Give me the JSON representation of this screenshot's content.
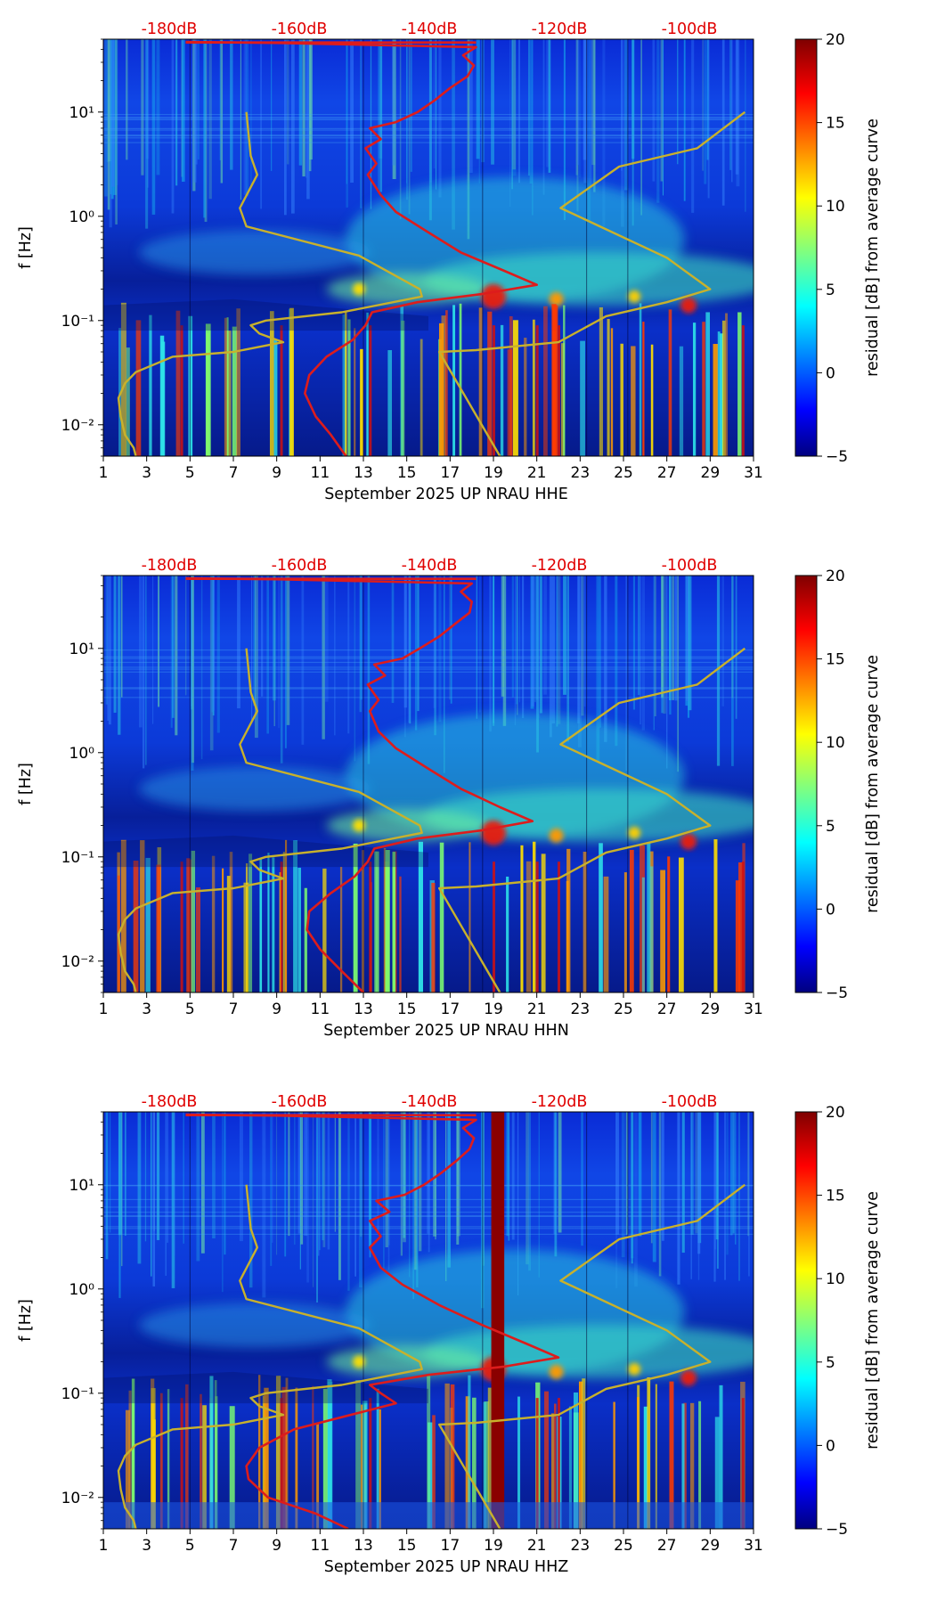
{
  "chart_data": [
    {
      "type": "heatmap",
      "xlabel": "September 2025 UP NRAU  HHE",
      "ylabel": "f [Hz]",
      "x_ticks": [
        "1",
        "3",
        "5",
        "7",
        "9",
        "11",
        "13",
        "15",
        "17",
        "19",
        "21",
        "23",
        "25",
        "27",
        "29",
        "31"
      ],
      "xlim": [
        1,
        31
      ],
      "ylim": [
        0.005,
        50
      ],
      "y_scale": "log",
      "y_ticks": [
        "10⁻²",
        "10⁻¹",
        "10⁰",
        "10¹"
      ],
      "top_axis_labels": [
        "-180dB",
        "-160dB",
        "-140dB",
        "-120dB",
        "-100dB"
      ],
      "colorbar": {
        "label": "residual [dB] from average curve",
        "min": -5,
        "max": 20,
        "ticks": [
          "20",
          "15",
          "10",
          "5",
          "0",
          "−5"
        ]
      },
      "series": [
        {
          "color": "#dd1c1c",
          "points": [
            [
              12.2,
              0.005
            ],
            [
              11.5,
              0.008
            ],
            [
              10.8,
              0.012
            ],
            [
              10.3,
              0.02
            ],
            [
              10.5,
              0.03
            ],
            [
              11.3,
              0.045
            ],
            [
              12.5,
              0.065
            ],
            [
              13.1,
              0.09
            ],
            [
              13.4,
              0.12
            ],
            [
              15.5,
              0.15
            ],
            [
              18.5,
              0.18
            ],
            [
              21.0,
              0.22
            ],
            [
              19.5,
              0.3
            ],
            [
              17.5,
              0.45
            ],
            [
              16.0,
              0.7
            ],
            [
              14.5,
              1.1
            ],
            [
              13.8,
              1.6
            ],
            [
              13.2,
              2.5
            ],
            [
              13.6,
              3.2
            ],
            [
              13.1,
              4.5
            ],
            [
              13.8,
              5.5
            ],
            [
              13.3,
              7
            ],
            [
              14.5,
              8
            ],
            [
              15.5,
              10
            ],
            [
              16.3,
              13
            ],
            [
              17.0,
              17
            ],
            [
              17.8,
              22
            ],
            [
              18.1,
              28
            ],
            [
              17.6,
              35
            ],
            [
              18.2,
              42
            ],
            [
              9.0,
              46
            ],
            [
              4.8,
              47
            ]
          ]
        },
        {
          "color": "#c8b12c",
          "points": [
            [
              2.5,
              0.005
            ],
            [
              2.4,
              0.006
            ],
            [
              2.0,
              0.008
            ],
            [
              1.8,
              0.012
            ],
            [
              1.7,
              0.018
            ],
            [
              2.0,
              0.025
            ],
            [
              2.5,
              0.032
            ],
            [
              4.2,
              0.045
            ],
            [
              7.0,
              0.05
            ],
            [
              9.3,
              0.062
            ],
            [
              8.2,
              0.075
            ],
            [
              7.8,
              0.09
            ],
            [
              8.5,
              0.1
            ],
            [
              12.0,
              0.12
            ],
            [
              15.7,
              0.17
            ],
            [
              15.6,
              0.2
            ],
            [
              12.8,
              0.42
            ],
            [
              7.6,
              0.8
            ],
            [
              7.3,
              1.2
            ],
            [
              8.1,
              2.5
            ],
            [
              7.8,
              3.8
            ],
            [
              7.6,
              10
            ]
          ]
        },
        {
          "color": "#c8b12c",
          "points": [
            [
              19.3,
              0.005
            ],
            [
              16.5,
              0.05
            ],
            [
              18.2,
              0.052
            ],
            [
              22.0,
              0.062
            ],
            [
              24.2,
              0.11
            ],
            [
              27.0,
              0.15
            ],
            [
              29.0,
              0.2
            ],
            [
              27.0,
              0.4
            ],
            [
              22.1,
              1.2
            ],
            [
              24.8,
              3.0
            ],
            [
              28.4,
              4.5
            ],
            [
              30.6,
              10
            ]
          ]
        }
      ]
    },
    {
      "type": "heatmap",
      "xlabel": "September 2025 UP NRAU  HHN",
      "ylabel": "f [Hz]",
      "x_ticks": [
        "1",
        "3",
        "5",
        "7",
        "9",
        "11",
        "13",
        "15",
        "17",
        "19",
        "21",
        "23",
        "25",
        "27",
        "29",
        "31"
      ],
      "xlim": [
        1,
        31
      ],
      "ylim": [
        0.005,
        50
      ],
      "y_scale": "log",
      "y_ticks": [
        "10⁻²",
        "10⁻¹",
        "10⁰",
        "10¹"
      ],
      "top_axis_labels": [
        "-180dB",
        "-160dB",
        "-140dB",
        "-120dB",
        "-100dB"
      ],
      "colorbar": {
        "label": "residual [dB] from average curve",
        "min": -5,
        "max": 20,
        "ticks": [
          "20",
          "15",
          "10",
          "5",
          "0",
          "−5"
        ]
      },
      "series": [
        {
          "color": "#dd1c1c",
          "points": [
            [
              13.0,
              0.005
            ],
            [
              12.0,
              0.008
            ],
            [
              11.0,
              0.013
            ],
            [
              10.4,
              0.02
            ],
            [
              10.5,
              0.03
            ],
            [
              11.5,
              0.045
            ],
            [
              12.6,
              0.065
            ],
            [
              13.2,
              0.09
            ],
            [
              13.5,
              0.12
            ],
            [
              15.5,
              0.15
            ],
            [
              18.5,
              0.18
            ],
            [
              20.8,
              0.22
            ],
            [
              19.3,
              0.3
            ],
            [
              17.5,
              0.45
            ],
            [
              16.0,
              0.7
            ],
            [
              14.5,
              1.1
            ],
            [
              13.7,
              1.6
            ],
            [
              13.3,
              2.5
            ],
            [
              13.7,
              3.2
            ],
            [
              13.2,
              4.5
            ],
            [
              14.0,
              5.5
            ],
            [
              13.5,
              7
            ],
            [
              14.8,
              8
            ],
            [
              15.6,
              10
            ],
            [
              16.5,
              13
            ],
            [
              17.2,
              17
            ],
            [
              17.9,
              22
            ],
            [
              18.0,
              28
            ],
            [
              17.5,
              35
            ],
            [
              18.0,
              42
            ],
            [
              9.0,
              46
            ],
            [
              4.8,
              47
            ]
          ]
        },
        {
          "color": "#c8b12c",
          "points": [
            [
              2.5,
              0.005
            ],
            [
              2.4,
              0.006
            ],
            [
              2.0,
              0.008
            ],
            [
              1.8,
              0.012
            ],
            [
              1.7,
              0.018
            ],
            [
              2.0,
              0.025
            ],
            [
              2.5,
              0.032
            ],
            [
              4.2,
              0.045
            ],
            [
              7.0,
              0.05
            ],
            [
              9.3,
              0.062
            ],
            [
              8.2,
              0.075
            ],
            [
              7.8,
              0.09
            ],
            [
              8.5,
              0.1
            ],
            [
              12.0,
              0.12
            ],
            [
              15.7,
              0.17
            ],
            [
              15.6,
              0.2
            ],
            [
              12.8,
              0.42
            ],
            [
              7.6,
              0.8
            ],
            [
              7.3,
              1.2
            ],
            [
              8.1,
              2.5
            ],
            [
              7.8,
              3.8
            ],
            [
              7.6,
              10
            ]
          ]
        },
        {
          "color": "#c8b12c",
          "points": [
            [
              19.3,
              0.005
            ],
            [
              16.5,
              0.05
            ],
            [
              18.2,
              0.052
            ],
            [
              22.0,
              0.062
            ],
            [
              24.2,
              0.11
            ],
            [
              27.0,
              0.15
            ],
            [
              29.0,
              0.2
            ],
            [
              27.0,
              0.4
            ],
            [
              22.1,
              1.2
            ],
            [
              24.8,
              3.0
            ],
            [
              28.4,
              4.5
            ],
            [
              30.6,
              10
            ]
          ]
        }
      ]
    },
    {
      "type": "heatmap",
      "xlabel": "September 2025 UP NRAU  HHZ",
      "ylabel": "f [Hz]",
      "x_ticks": [
        "1",
        "3",
        "5",
        "7",
        "9",
        "11",
        "13",
        "15",
        "17",
        "19",
        "21",
        "23",
        "25",
        "27",
        "29",
        "31"
      ],
      "xlim": [
        1,
        31
      ],
      "ylim": [
        0.005,
        50
      ],
      "y_scale": "log",
      "y_ticks": [
        "10⁻²",
        "10⁻¹",
        "10⁰",
        "10¹"
      ],
      "top_axis_labels": [
        "-180dB",
        "-160dB",
        "-140dB",
        "-120dB",
        "-100dB"
      ],
      "colorbar": {
        "label": "residual [dB] from average curve",
        "min": -5,
        "max": 20,
        "ticks": [
          "20",
          "15",
          "10",
          "5",
          "0",
          "−5"
        ]
      },
      "series": [
        {
          "color": "#dd1c1c",
          "points": [
            [
              12.3,
              0.005
            ],
            [
              10.8,
              0.007
            ],
            [
              8.6,
              0.01
            ],
            [
              7.7,
              0.015
            ],
            [
              7.6,
              0.02
            ],
            [
              8.2,
              0.03
            ],
            [
              9.8,
              0.045
            ],
            [
              12.8,
              0.065
            ],
            [
              14.5,
              0.08
            ],
            [
              13.8,
              0.1
            ],
            [
              13.3,
              0.12
            ],
            [
              16.0,
              0.15
            ],
            [
              19.5,
              0.18
            ],
            [
              22.0,
              0.22
            ],
            [
              20.5,
              0.3
            ],
            [
              18.5,
              0.45
            ],
            [
              16.5,
              0.7
            ],
            [
              14.8,
              1.1
            ],
            [
              13.8,
              1.6
            ],
            [
              13.3,
              2.5
            ],
            [
              13.8,
              3.2
            ],
            [
              13.3,
              4.5
            ],
            [
              14.2,
              5.5
            ],
            [
              13.6,
              7
            ],
            [
              14.9,
              8
            ],
            [
              15.8,
              10
            ],
            [
              16.6,
              13
            ],
            [
              17.3,
              17
            ],
            [
              17.9,
              22
            ],
            [
              18.1,
              28
            ],
            [
              17.6,
              35
            ],
            [
              18.2,
              42
            ],
            [
              9.0,
              46
            ],
            [
              4.8,
              47
            ]
          ]
        },
        {
          "color": "#c8b12c",
          "points": [
            [
              2.5,
              0.005
            ],
            [
              2.4,
              0.006
            ],
            [
              2.0,
              0.008
            ],
            [
              1.8,
              0.012
            ],
            [
              1.7,
              0.018
            ],
            [
              2.0,
              0.025
            ],
            [
              2.5,
              0.032
            ],
            [
              4.2,
              0.045
            ],
            [
              7.0,
              0.05
            ],
            [
              9.3,
              0.062
            ],
            [
              8.2,
              0.075
            ],
            [
              7.8,
              0.09
            ],
            [
              8.5,
              0.1
            ],
            [
              12.0,
              0.12
            ],
            [
              15.7,
              0.17
            ],
            [
              15.6,
              0.2
            ],
            [
              12.8,
              0.42
            ],
            [
              7.6,
              0.8
            ],
            [
              7.3,
              1.2
            ],
            [
              8.1,
              2.5
            ],
            [
              7.8,
              3.8
            ],
            [
              7.6,
              10
            ]
          ]
        },
        {
          "color": "#c8b12c",
          "points": [
            [
              19.3,
              0.005
            ],
            [
              16.5,
              0.05
            ],
            [
              18.2,
              0.052
            ],
            [
              22.0,
              0.062
            ],
            [
              24.2,
              0.11
            ],
            [
              27.0,
              0.15
            ],
            [
              29.0,
              0.2
            ],
            [
              27.0,
              0.4
            ],
            [
              22.1,
              1.2
            ],
            [
              24.8,
              3.0
            ],
            [
              28.4,
              4.5
            ],
            [
              30.6,
              10
            ]
          ]
        }
      ]
    }
  ]
}
